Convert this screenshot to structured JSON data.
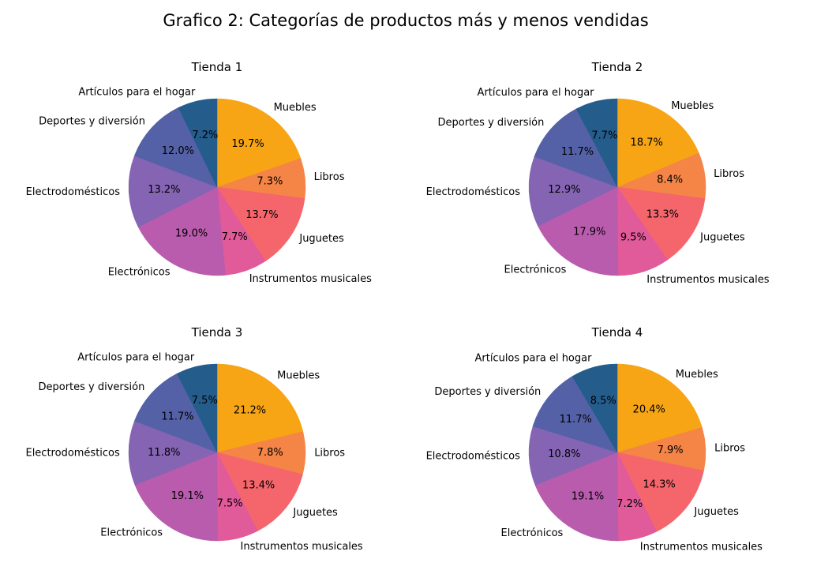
{
  "title": "Grafico 2: Categorías de productos más y menos vendidas",
  "colors": {
    "Muebles": "#f7a514",
    "Libros": "#f58546",
    "Juguetes": "#f4666c",
    "Instrumentos musicales": "#e15a99",
    "Electrónicos": "#b95cad",
    "Electrodomésticos": "#8464b3",
    "Deportes y diversión": "#5461a6",
    "Artículos para el hogar": "#245c8c"
  },
  "chart_data": [
    {
      "type": "pie",
      "title": "Tienda 1",
      "labels": [
        "Muebles",
        "Libros",
        "Juguetes",
        "Instrumentos musicales",
        "Electrónicos",
        "Electrodomésticos",
        "Deportes y diversión",
        "Artículos para el hogar"
      ],
      "values": [
        19.7,
        7.3,
        13.7,
        7.7,
        19.0,
        13.2,
        12.0,
        7.2
      ],
      "value_labels": [
        "19.7%",
        "7.3%",
        "13.7%",
        "7.7%",
        "19.0%",
        "13.2%",
        "12.0%",
        "7.2%"
      ],
      "start_angle": "top (90°)",
      "direction": "clockwise"
    },
    {
      "type": "pie",
      "title": "Tienda 2",
      "labels": [
        "Muebles",
        "Libros",
        "Juguetes",
        "Instrumentos musicales",
        "Electrónicos",
        "Electrodomésticos",
        "Deportes y diversión",
        "Artículos para el hogar"
      ],
      "values": [
        18.7,
        8.4,
        13.3,
        9.5,
        17.9,
        12.9,
        11.7,
        7.7
      ],
      "value_labels": [
        "18.7%",
        "8.4%",
        "13.3%",
        "9.5%",
        "17.9%",
        "12.9%",
        "11.7%",
        "7.7%"
      ],
      "start_angle": "top (90°)",
      "direction": "clockwise"
    },
    {
      "type": "pie",
      "title": "Tienda 3",
      "labels": [
        "Muebles",
        "Libros",
        "Juguetes",
        "Instrumentos musicales",
        "Electrónicos",
        "Electrodomésticos",
        "Deportes y diversión",
        "Artículos para el hogar"
      ],
      "values": [
        21.2,
        7.8,
        13.4,
        7.5,
        19.1,
        11.8,
        11.7,
        7.5
      ],
      "value_labels": [
        "21.2%",
        "7.8%",
        "13.4%",
        "7.5%",
        "19.1%",
        "11.8%",
        "11.7%",
        "7.5%"
      ],
      "start_angle": "top (90°)",
      "direction": "clockwise"
    },
    {
      "type": "pie",
      "title": "Tienda 4",
      "labels": [
        "Muebles",
        "Libros",
        "Juguetes",
        "Instrumentos musicales",
        "Electrónicos",
        "Electrodomésticos",
        "Deportes y diversión",
        "Artículos para el hogar"
      ],
      "values": [
        20.4,
        7.9,
        14.3,
        7.2,
        19.1,
        10.8,
        11.7,
        8.5
      ],
      "value_labels": [
        "20.4%",
        "7.9%",
        "14.3%",
        "7.2%",
        "19.1%",
        "10.8%",
        "11.7%",
        "8.5%"
      ],
      "start_angle": "top (90°)",
      "direction": "clockwise"
    }
  ]
}
